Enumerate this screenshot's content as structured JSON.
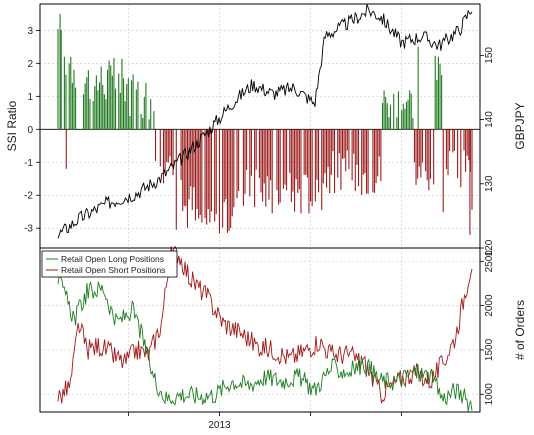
{
  "chart_data": [
    {
      "panel": "top",
      "type": "bar+line",
      "title": "",
      "ylabel_left": "SSI Ratio",
      "ylabel_right": "GBPJPY",
      "ylim_left": [
        -3.6,
        3.8
      ],
      "yticks_left": [
        "3",
        "2",
        "1",
        "0",
        "-1",
        "-2",
        "-3"
      ],
      "ylim_right": [
        120,
        158
      ],
      "yticks_right": [
        "150",
        "140",
        "130",
        "120"
      ],
      "grid": true,
      "x": {
        "start": 0,
        "end": 1
      },
      "series": [
        {
          "kind": "bar",
          "description_color": "#2e7d2e",
          "positive_color": "#1f7a1f",
          "negative_color": "#9b1c1c",
          "segments": [
            {
              "from": 0.0,
              "to": 0.045,
              "base": 2.2,
              "jitter": 1.0,
              "sign": 1
            },
            {
              "from": 0.045,
              "to": 0.06,
              "base": 0.0,
              "jitter": 0.0,
              "sign": 0
            },
            {
              "from": 0.06,
              "to": 0.17,
              "base": 1.5,
              "jitter": 0.7,
              "sign": 1
            },
            {
              "from": 0.17,
              "to": 0.235,
              "base": 1.0,
              "jitter": 0.7,
              "sign": 1
            },
            {
              "from": 0.235,
              "to": 0.285,
              "base": -1.2,
              "jitter": 0.5,
              "sign": -1
            },
            {
              "from": 0.285,
              "to": 0.33,
              "base": -2.3,
              "jitter": 0.8,
              "sign": -1
            },
            {
              "from": 0.33,
              "to": 0.43,
              "base": -2.7,
              "jitter": 0.6,
              "sign": -1
            },
            {
              "from": 0.43,
              "to": 0.64,
              "base": -1.9,
              "jitter": 0.7,
              "sign": -1
            },
            {
              "from": 0.64,
              "to": 0.78,
              "base": -1.3,
              "jitter": 0.7,
              "sign": -1
            },
            {
              "from": 0.78,
              "to": 0.86,
              "base": 0.9,
              "jitter": 0.6,
              "sign": 1
            },
            {
              "from": 0.86,
              "to": 0.91,
              "base": -1.3,
              "jitter": 0.6,
              "sign": -1
            },
            {
              "from": 0.91,
              "to": 0.93,
              "base": 1.8,
              "jitter": 0.5,
              "sign": 1
            },
            {
              "from": 0.93,
              "to": 1.0,
              "base": -1.6,
              "jitter": 1.0,
              "sign": -1
            }
          ]
        },
        {
          "kind": "line",
          "color": "#000000",
          "axis": "right",
          "anchors": [
            [
              0.0,
              122
            ],
            [
              0.05,
              124.5
            ],
            [
              0.12,
              127
            ],
            [
              0.19,
              128.5
            ],
            [
              0.25,
              131
            ],
            [
              0.3,
              134
            ],
            [
              0.36,
              138
            ],
            [
              0.42,
              142.5
            ],
            [
              0.47,
              145.5
            ],
            [
              0.52,
              144
            ],
            [
              0.57,
              145
            ],
            [
              0.62,
              142.5
            ],
            [
              0.645,
              153
            ],
            [
              0.7,
              155
            ],
            [
              0.75,
              157
            ],
            [
              0.78,
              156
            ],
            [
              0.83,
              152
            ],
            [
              0.88,
              153
            ],
            [
              0.92,
              151.5
            ],
            [
              0.97,
              154
            ],
            [
              1.0,
              157.5
            ]
          ]
        }
      ]
    },
    {
      "panel": "bottom",
      "type": "line",
      "title": "",
      "ylabel_right": "# of Orders",
      "ylim_right": [
        800,
        2650
      ],
      "yticks_right": [
        "2500",
        "2000",
        "1500",
        "1000"
      ],
      "grid": true,
      "x_ticklabels": [
        "2013"
      ],
      "legend": {
        "placement": "top-left",
        "entries": [
          "Retail Open Long Positions",
          "Retail Open Short Positions"
        ]
      },
      "series": [
        {
          "name": "Retail Open Long Positions",
          "color": "#1e7d1e",
          "anchors": [
            [
              0.0,
              2300
            ],
            [
              0.04,
              1850
            ],
            [
              0.07,
              2150
            ],
            [
              0.11,
              2200
            ],
            [
              0.14,
              1800
            ],
            [
              0.18,
              1950
            ],
            [
              0.2,
              1700
            ],
            [
              0.23,
              1200
            ],
            [
              0.26,
              950
            ],
            [
              0.3,
              1000
            ],
            [
              0.34,
              980
            ],
            [
              0.38,
              1000
            ],
            [
              0.42,
              1150
            ],
            [
              0.46,
              1100
            ],
            [
              0.5,
              1200
            ],
            [
              0.54,
              1150
            ],
            [
              0.58,
              1200
            ],
            [
              0.62,
              1050
            ],
            [
              0.66,
              1300
            ],
            [
              0.7,
              1250
            ],
            [
              0.74,
              1350
            ],
            [
              0.78,
              1150
            ],
            [
              0.82,
              1150
            ],
            [
              0.86,
              1250
            ],
            [
              0.9,
              1200
            ],
            [
              0.93,
              950
            ],
            [
              0.96,
              1050
            ],
            [
              1.0,
              880
            ]
          ]
        },
        {
          "name": "Retail Open Short Positions",
          "color": "#a01a1a",
          "anchors": [
            [
              0.0,
              950
            ],
            [
              0.03,
              1100
            ],
            [
              0.05,
              1800
            ],
            [
              0.07,
              1500
            ],
            [
              0.1,
              1550
            ],
            [
              0.13,
              1450
            ],
            [
              0.16,
              1350
            ],
            [
              0.19,
              1500
            ],
            [
              0.22,
              1450
            ],
            [
              0.25,
              1800
            ],
            [
              0.27,
              2550
            ],
            [
              0.29,
              2600
            ],
            [
              0.32,
              2300
            ],
            [
              0.36,
              2100
            ],
            [
              0.4,
              1800
            ],
            [
              0.44,
              1700
            ],
            [
              0.48,
              1550
            ],
            [
              0.52,
              1500
            ],
            [
              0.56,
              1400
            ],
            [
              0.6,
              1500
            ],
            [
              0.63,
              1600
            ],
            [
              0.66,
              1450
            ],
            [
              0.7,
              1450
            ],
            [
              0.74,
              1350
            ],
            [
              0.78,
              1000
            ],
            [
              0.82,
              1150
            ],
            [
              0.86,
              1250
            ],
            [
              0.9,
              1150
            ],
            [
              0.93,
              1350
            ],
            [
              0.96,
              1650
            ],
            [
              1.0,
              2500
            ]
          ]
        }
      ]
    }
  ]
}
